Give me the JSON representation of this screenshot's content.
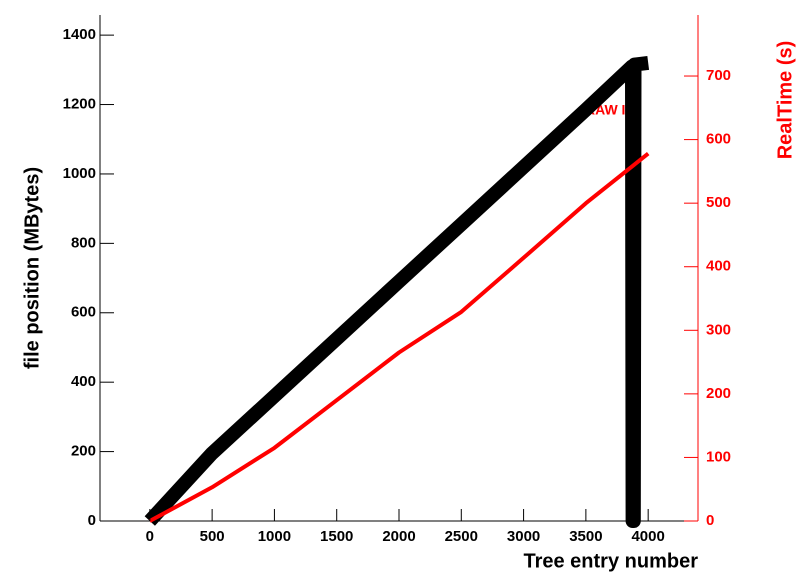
{
  "chart_data": {
    "type": "line",
    "xlabel": "Tree entry number",
    "ylabel": "file position (MBytes)",
    "y2label": "RealTime (s)",
    "annotation": "RAW IO",
    "xlim": [
      -400,
      4400
    ],
    "ylim": [
      0,
      1458
    ],
    "y2lim": [
      0,
      796
    ],
    "xticks": [
      0,
      500,
      1000,
      1500,
      2000,
      2500,
      3000,
      3500,
      4000
    ],
    "yticks": [
      0,
      200,
      400,
      600,
      800,
      1000,
      1200,
      1400
    ],
    "y2ticks": [
      0,
      100,
      200,
      300,
      400,
      500,
      600,
      700
    ],
    "y2color": "#ff0000",
    "series": [
      {
        "color": "#000000",
        "width": 14,
        "x": [
          0,
          500,
          1000,
          1500,
          2000,
          2500,
          3000,
          3500,
          3870,
          3875,
          3885,
          3890,
          4000
        ],
        "values": [
          0,
          195,
          360,
          525,
          690,
          855,
          1020,
          1185,
          1310,
          0,
          0,
          1315,
          1320
        ]
      },
      {
        "color": "#ff0000",
        "width": 4,
        "axis": "y2",
        "x": [
          0,
          500,
          1000,
          1500,
          2000,
          2500,
          3000,
          3500,
          4000
        ],
        "values": [
          0,
          53,
          115,
          190,
          265,
          329,
          414,
          500,
          578
        ]
      }
    ]
  }
}
